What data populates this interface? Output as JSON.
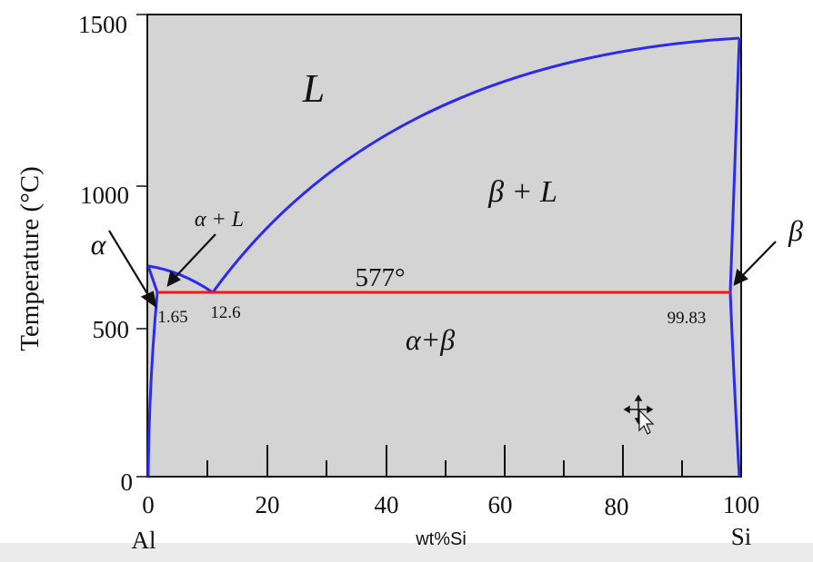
{
  "diagram": {
    "y_axis": {
      "label": "Temperature (°C)",
      "ticks": [
        "1500",
        "1000",
        "500",
        "0"
      ]
    },
    "x_axis": {
      "label": "wt%Si",
      "ticks": [
        "0",
        "20",
        "40",
        "60",
        "80",
        "100"
      ],
      "end_labels": {
        "left": "Al",
        "right": "Si"
      }
    },
    "regions": {
      "liquid": "L",
      "beta_liquid": "β + L",
      "alpha_liquid": "α + L",
      "alpha_beta": "α+β",
      "alpha": "α",
      "beta": "β"
    },
    "eutectic_temperature": "577°",
    "compositions": {
      "alpha_max": "1.65",
      "eutectic": "12.6",
      "beta_min": "99.83"
    },
    "colors": {
      "background": "#d4d4d4",
      "phase_boundary": "#2a2af0",
      "eutectic_line": "#f01818",
      "axis": "#111111"
    },
    "cursor": "move-cursor-icon"
  }
}
